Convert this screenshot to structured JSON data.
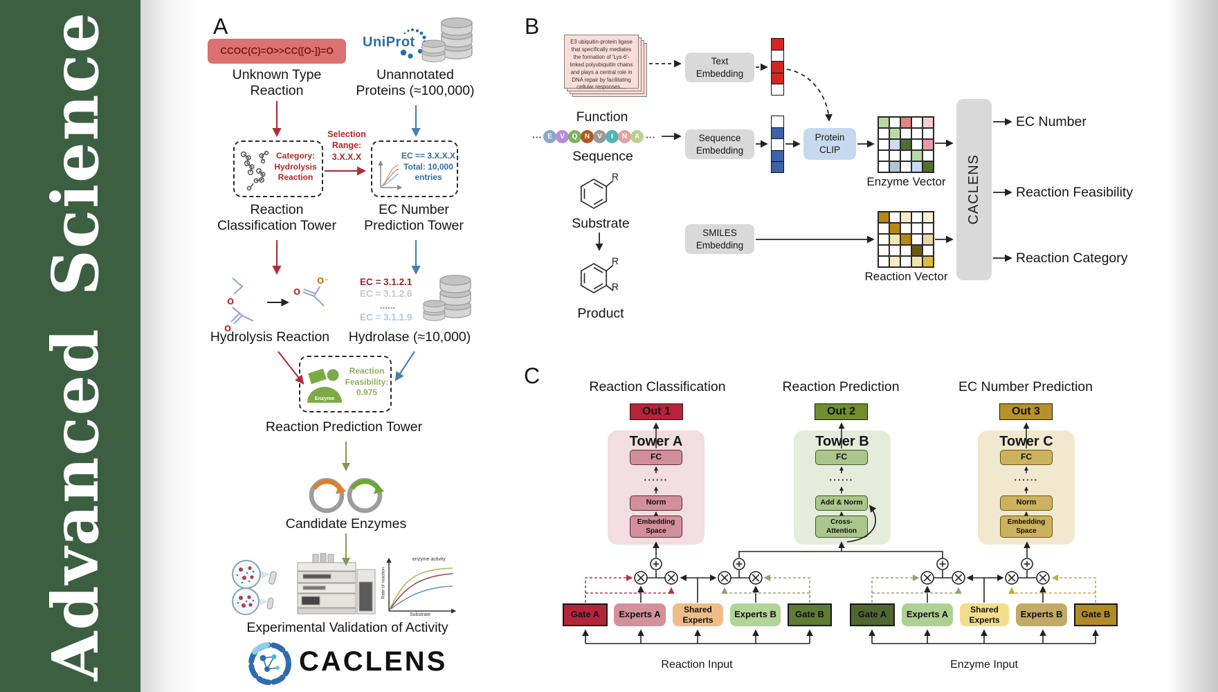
{
  "sidebar": {
    "word1": "Advanced",
    "word2": "Science",
    "bg_color": "#3c5e41"
  },
  "colors": {
    "red_flow": "#b03038",
    "blue_flow": "#4a7fae",
    "olive_flow": "#7f9c52",
    "tower_a_accent": "#b6243a",
    "tower_b_accent": "#6f8f2f",
    "tower_c_accent": "#b6922c"
  },
  "panelA": {
    "label": "A",
    "smiles": "CCOC(C)=O>>CC([O-])=O",
    "unknown_reaction": "Unknown Type\nReaction",
    "uniprot": "UniProt",
    "unannotated": "Unannotated\nProteins (≈100,000)",
    "category_box": "Category:\nHydrolysis\nReaction",
    "selection_range": "Selection\nRange:\n3.X.X.X",
    "ec_box": "EC == 3.X.X.X\nTotal: 10,000\nentries",
    "classification_tower": "Reaction\nClassification Tower",
    "prediction_tower": "EC Number\nPrediction Tower",
    "atom_o": "O",
    "atom_o_minus": "O⁻",
    "ec_list": [
      "EC = 3.1.2.1",
      "EC = 3.1.2.6",
      "......",
      "EC = 3.1.1.9"
    ],
    "hydrolysis": "Hydrolysis Reaction",
    "hydrolase": "Hydrolase (≈10,000)",
    "enzyme_label": "Enzyme",
    "feasibility": "Reaction\nFeasibility:\n0.975",
    "reaction_prediction_tower": "Reaction Prediction Tower",
    "candidate_enzymes": "Candidate Enzymes",
    "validation": "Experimental Validation of Activity",
    "graph": {
      "curve_label": "enzyme activity",
      "ylabel": "Rate of reaction",
      "xlabel": "Substrate"
    },
    "logo": "CACLENS"
  },
  "panelB": {
    "label": "B",
    "function_card": "E3 ubiquitin-protein ligase that specifically mediates the formation of 'Lys-6'-linked polyubiquitin chains and plays a central role in DNA repair by facilitating cellular responses....",
    "function": "Function",
    "ellipsis": "···",
    "residues": [
      {
        "letter": "E",
        "color": "#8ba6c9"
      },
      {
        "letter": "V",
        "color": "#bb8bd8"
      },
      {
        "letter": "Q",
        "color": "#7cb35c"
      },
      {
        "letter": "N",
        "color": "#ad5b20"
      },
      {
        "letter": "V",
        "color": "#9b9b9b"
      },
      {
        "letter": "I",
        "color": "#52b5b8"
      },
      {
        "letter": "N",
        "color": "#e2a3a1"
      },
      {
        "letter": "A",
        "color": "#b9d28d"
      }
    ],
    "sequence": "Sequence",
    "substrate": "Substrate",
    "product": "Product",
    "r_label": "R",
    "text_embedding": "Text\nEmbedding",
    "sequence_embedding": "Sequence\nEmbedding",
    "smiles_embedding": "SMILES\nEmbedding",
    "protein_clip": "Protein\nCLIP",
    "text_vector": [
      "#d42525",
      "#ffffff",
      "#d42525",
      "#d42525",
      "#ffffff"
    ],
    "sequence_vector": [
      "#ffffff",
      "#3c63a8",
      "#ffffff",
      "#3c63a8",
      "#3c63a8"
    ],
    "enzyme_grid": [
      [
        "#b9d8a2",
        "#ffffff",
        "#e4837f",
        "#ffffff",
        "#f6cdd4"
      ],
      [
        "#ffffff",
        "#b9d8a2",
        "#ffffff",
        "#ffffff",
        "#ffffff"
      ],
      [
        "#ffffff",
        "#ccdcf1",
        "#4e7030",
        "#ffffff",
        "#eb9ba1"
      ],
      [
        "#ffffff",
        "#ffffff",
        "#ffffff",
        "#b9d8a2",
        "#ffffff"
      ],
      [
        "#ffffff",
        "#b9c3cd",
        "#ffffff",
        "#c9daf2",
        "#53702e"
      ]
    ],
    "reaction_grid": [
      [
        "#b9880f",
        "#ffffff",
        "#f6edc4",
        "#ffffff",
        "#faf2d7"
      ],
      [
        "#ffffff",
        "#b9880f",
        "#ffffff",
        "#ffffff",
        "#ffffff"
      ],
      [
        "#ffffff",
        "#f3e6ae",
        "#b9880f",
        "#ffffff",
        "#e9d6a4"
      ],
      [
        "#fdfbf2",
        "#ffffff",
        "#ffffff",
        "#6b5a15",
        "#ffffff"
      ],
      [
        "#ffffff",
        "#f6edc4",
        "#ffffff",
        "#f0e2ab",
        "#dfbc3e"
      ]
    ],
    "enzyme_vector_label": "Enzyme Vector",
    "reaction_vector_label": "Reaction Vector",
    "caclens": "CACLENS",
    "outputs": [
      "EC Number",
      "Reaction Feasibility",
      "Reaction Category"
    ]
  },
  "panelC": {
    "label": "C",
    "headers": [
      "Reaction Classification",
      "Reaction Prediction",
      "EC Number Prediction"
    ],
    "towers": [
      {
        "out": "Out 1",
        "title": "Tower A",
        "fc": "FC",
        "dots": "······",
        "mid": "Norm",
        "bottom": "Embedding\nSpace"
      },
      {
        "out": "Out 2",
        "title": "Tower B",
        "fc": "FC",
        "dots": "······",
        "mid": "Add & Norm",
        "bottom": "Cross-\nAttention"
      },
      {
        "out": "Out 3",
        "title": "Tower C",
        "fc": "FC",
        "dots": "······",
        "mid": "Norm",
        "bottom": "Embedding\nSpace"
      }
    ],
    "groups": [
      {
        "gate_a": "Gate A",
        "experts_a": "Experts A",
        "shared": "Shared\nExperts",
        "experts_b": "Experts B",
        "gate_b": "Gate B",
        "input_label": "Reaction Input"
      },
      {
        "gate_a": "Gate A",
        "experts_a": "Experts A",
        "shared": "Shared\nExperts",
        "experts_b": "Experts B",
        "gate_b": "Gate B",
        "input_label": "Enzyme Input"
      }
    ]
  }
}
